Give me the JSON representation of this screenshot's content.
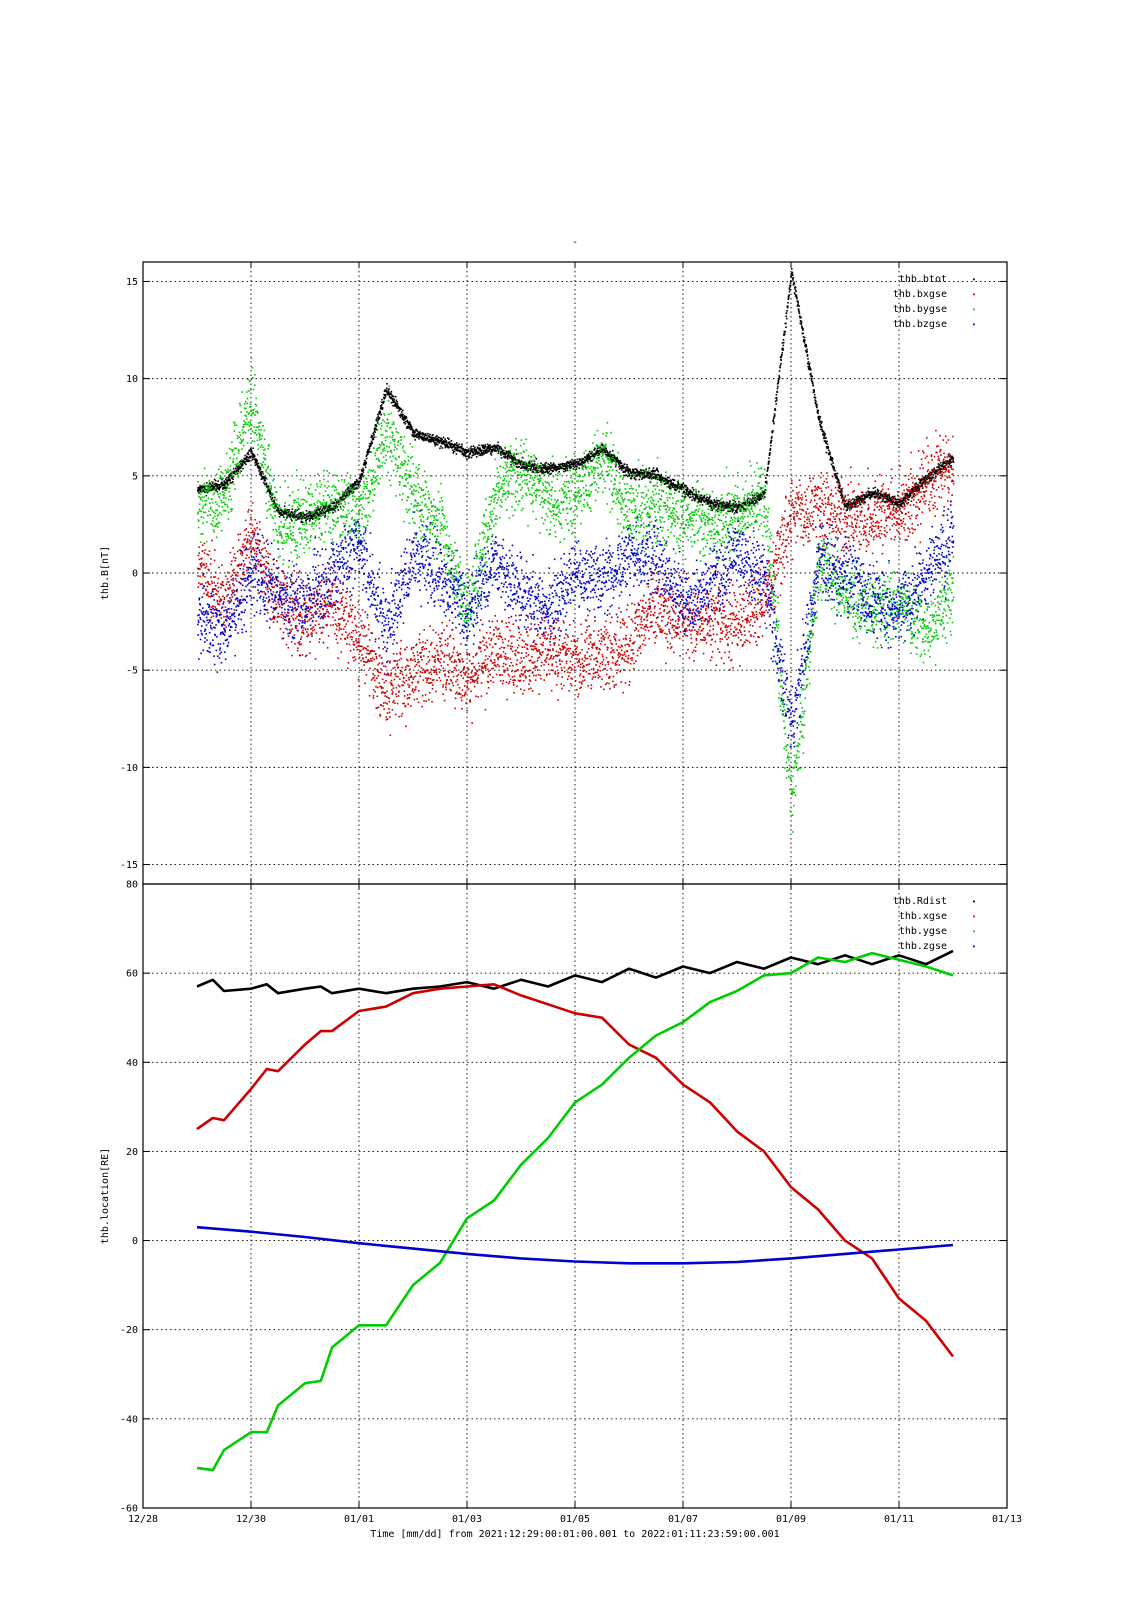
{
  "top_title": "-",
  "xlabel": "Time [mm/dd]  from 2021:12:29:00:01:00.001  to  2022:01:11:23:59:00.001",
  "chart_data": [
    {
      "type": "scatter",
      "panel": "top",
      "title": "",
      "ylabel": "thb.B[nT]",
      "xlabel": "Time [mm/dd]  from 2021:12:29:00:01:00.001  to  2022:01:11:23:59:00.001",
      "xlim": [
        "2021-12-28",
        "2022-01-13"
      ],
      "ylim": [
        -16,
        16
      ],
      "yticks": [
        15,
        10,
        5,
        0,
        -5,
        -10,
        -15
      ],
      "xticks": [
        "12/28",
        "12/30",
        "01/01",
        "01/03",
        "01/05",
        "01/07",
        "01/09",
        "01/11",
        "01/13"
      ],
      "grid": true,
      "legend_position": "top-right",
      "series": [
        {
          "name": "thb.btot",
          "color": "#000000",
          "x": [
            "2021-12-29 00:00",
            "2021-12-29 12:00",
            "2021-12-30 00:00",
            "2021-12-30 12:00",
            "2021-12-31 00:00",
            "2021-12-31 12:00",
            "2022-01-01 00:00",
            "2022-01-01 12:00",
            "2022-01-02 00:00",
            "2022-01-02 12:00",
            "2022-01-03 00:00",
            "2022-01-03 12:00",
            "2022-01-04 00:00",
            "2022-01-04 12:00",
            "2022-01-05 00:00",
            "2022-01-05 12:00",
            "2022-01-06 00:00",
            "2022-01-06 12:00",
            "2022-01-07 00:00",
            "2022-01-07 12:00",
            "2022-01-08 00:00",
            "2022-01-08 12:00",
            "2022-01-09 00:00",
            "2022-01-09 12:00",
            "2022-01-10 00:00",
            "2022-01-10 12:00",
            "2022-01-11 00:00",
            "2022-01-11 12:00",
            "2022-01-12 00:00"
          ],
          "y": [
            4.3,
            4.6,
            6.2,
            3.2,
            2.9,
            3.4,
            4.8,
            9.5,
            7.2,
            6.8,
            6.2,
            6.5,
            5.6,
            5.4,
            5.6,
            6.4,
            5.2,
            5.1,
            4.3,
            3.6,
            3.4,
            4.1,
            15.5,
            8.0,
            3.4,
            4.2,
            3.6,
            4.9,
            6.0
          ]
        },
        {
          "name": "thb.bxgse",
          "color": "#cc0000",
          "x": [
            "2021-12-29 00:00",
            "2021-12-29 12:00",
            "2021-12-30 00:00",
            "2021-12-30 12:00",
            "2021-12-31 00:00",
            "2021-12-31 12:00",
            "2022-01-01 00:00",
            "2022-01-01 12:00",
            "2022-01-02 00:00",
            "2022-01-02 12:00",
            "2022-01-03 00:00",
            "2022-01-03 12:00",
            "2022-01-04 00:00",
            "2022-01-04 12:00",
            "2022-01-05 00:00",
            "2022-01-05 12:00",
            "2022-01-06 00:00",
            "2022-01-06 12:00",
            "2022-01-07 00:00",
            "2022-01-07 12:00",
            "2022-01-08 00:00",
            "2022-01-08 12:00",
            "2022-01-09 00:00",
            "2022-01-09 12:00",
            "2022-01-10 00:00",
            "2022-01-10 12:00",
            "2022-01-11 00:00",
            "2022-01-11 12:00",
            "2022-01-12 00:00"
          ],
          "y": [
            0.5,
            -1.5,
            2.0,
            -1.5,
            -2.5,
            -1.5,
            -3.5,
            -6.0,
            -5.0,
            -4.5,
            -5.5,
            -4.0,
            -4.5,
            -4.0,
            -4.5,
            -4.0,
            -3.5,
            -1.5,
            -2.5,
            -2.5,
            -2.5,
            -1.5,
            3.0,
            3.5,
            2.8,
            3.0,
            3.2,
            4.5,
            5.5
          ]
        },
        {
          "name": "thb.bygse",
          "color": "#00cc00",
          "x": [
            "2021-12-29 00:00",
            "2021-12-29 12:00",
            "2021-12-30 00:00",
            "2021-12-30 12:00",
            "2021-12-31 00:00",
            "2021-12-31 12:00",
            "2022-01-01 00:00",
            "2022-01-01 12:00",
            "2022-01-02 00:00",
            "2022-01-02 12:00",
            "2022-01-03 00:00",
            "2022-01-03 12:00",
            "2022-01-04 00:00",
            "2022-01-04 12:00",
            "2022-01-05 00:00",
            "2022-01-05 12:00",
            "2022-01-06 00:00",
            "2022-01-06 12:00",
            "2022-01-07 00:00",
            "2022-01-07 12:00",
            "2022-01-08 00:00",
            "2022-01-08 12:00",
            "2022-01-09 00:00",
            "2022-01-09 12:00",
            "2022-01-10 00:00",
            "2022-01-10 12:00",
            "2022-01-11 00:00",
            "2022-01-11 12:00",
            "2022-01-12 00:00"
          ],
          "y": [
            3.5,
            4.0,
            9.0,
            2.0,
            3.0,
            3.5,
            3.0,
            7.5,
            4.0,
            2.5,
            -2.0,
            4.0,
            5.5,
            3.5,
            4.0,
            6.0,
            3.0,
            3.5,
            3.0,
            2.5,
            3.0,
            4.0,
            -12.0,
            0.5,
            -1.0,
            -2.0,
            -1.5,
            -3.0,
            -1.0
          ]
        },
        {
          "name": "thb.bzgse",
          "color": "#0000cc",
          "x": [
            "2021-12-29 00:00",
            "2021-12-29 12:00",
            "2021-12-30 00:00",
            "2021-12-30 12:00",
            "2021-12-31 00:00",
            "2021-12-31 12:00",
            "2022-01-01 00:00",
            "2022-01-01 12:00",
            "2022-01-02 00:00",
            "2022-01-02 12:00",
            "2022-01-03 00:00",
            "2022-01-03 12:00",
            "2022-01-04 00:00",
            "2022-01-04 12:00",
            "2022-01-05 00:00",
            "2022-01-05 12:00",
            "2022-01-06 00:00",
            "2022-01-06 12:00",
            "2022-01-07 00:00",
            "2022-01-07 12:00",
            "2022-01-08 00:00",
            "2022-01-08 12:00",
            "2022-01-09 00:00",
            "2022-01-09 12:00",
            "2022-01-10 00:00",
            "2022-01-10 12:00",
            "2022-01-11 00:00",
            "2022-01-11 12:00",
            "2022-01-12 00:00"
          ],
          "y": [
            -2.0,
            -3.0,
            0.0,
            -1.0,
            -1.5,
            0.0,
            1.5,
            -3.0,
            1.0,
            0.0,
            -2.0,
            0.5,
            -1.0,
            -2.0,
            0.0,
            -0.5,
            1.0,
            0.5,
            -1.5,
            -0.5,
            1.0,
            0.0,
            -8.0,
            0.5,
            0.0,
            -1.5,
            -2.0,
            0.0,
            2.0
          ]
        }
      ]
    },
    {
      "type": "line",
      "panel": "bottom",
      "title": "",
      "ylabel": "thb.location[RE]",
      "xlabel": "Time [mm/dd]  from 2021:12:29:00:01:00.001  to  2022:01:11:23:59:00.001",
      "xlim": [
        "2021-12-28",
        "2022-01-13"
      ],
      "ylim": [
        -60,
        80
      ],
      "yticks": [
        80,
        60,
        40,
        20,
        0,
        -20,
        -40,
        -60
      ],
      "xticks": [
        "12/28",
        "12/30",
        "01/01",
        "01/03",
        "01/05",
        "01/07",
        "01/09",
        "01/11",
        "01/13"
      ],
      "grid": true,
      "legend_position": "top-right",
      "series": [
        {
          "name": "thb.Rdist",
          "color": "#000000",
          "x": [
            "2021-12-29 00:00",
            "2021-12-29 07:00",
            "2021-12-29 12:00",
            "2021-12-30 00:00",
            "2021-12-30 07:00",
            "2021-12-30 12:00",
            "2021-12-31 00:00",
            "2021-12-31 07:00",
            "2021-12-31 12:00",
            "2022-01-01 00:00",
            "2022-01-01 12:00",
            "2022-01-02 00:00",
            "2022-01-02 12:00",
            "2022-01-03 00:00",
            "2022-01-03 12:00",
            "2022-01-04 00:00",
            "2022-01-04 12:00",
            "2022-01-05 00:00",
            "2022-01-05 12:00",
            "2022-01-06 00:00",
            "2022-01-06 12:00",
            "2022-01-07 00:00",
            "2022-01-07 12:00",
            "2022-01-08 00:00",
            "2022-01-08 12:00",
            "2022-01-09 00:00",
            "2022-01-09 12:00",
            "2022-01-10 00:00",
            "2022-01-10 12:00",
            "2022-01-11 00:00",
            "2022-01-11 12:00",
            "2022-01-11 23:59"
          ],
          "y": [
            57,
            58.5,
            56,
            56.5,
            57.5,
            55.5,
            56.5,
            57,
            55.5,
            56.5,
            55.5,
            56.5,
            57,
            58,
            56.5,
            58.5,
            57,
            59.5,
            58,
            61,
            59,
            61.5,
            60,
            62.5,
            61,
            63.5,
            62,
            64,
            62,
            64,
            62,
            65
          ]
        },
        {
          "name": "thb.xgse",
          "color": "#cc0000",
          "x": [
            "2021-12-29 00:00",
            "2021-12-29 07:00",
            "2021-12-29 12:00",
            "2021-12-30 00:00",
            "2021-12-30 07:00",
            "2021-12-30 12:00",
            "2021-12-31 00:00",
            "2021-12-31 07:00",
            "2021-12-31 12:00",
            "2022-01-01 00:00",
            "2022-01-01 12:00",
            "2022-01-02 00:00",
            "2022-01-02 12:00",
            "2022-01-03 00:00",
            "2022-01-03 12:00",
            "2022-01-04 00:00",
            "2022-01-04 12:00",
            "2022-01-05 00:00",
            "2022-01-05 12:00",
            "2022-01-06 00:00",
            "2022-01-06 12:00",
            "2022-01-07 00:00",
            "2022-01-07 12:00",
            "2022-01-08 00:00",
            "2022-01-08 12:00",
            "2022-01-09 00:00",
            "2022-01-09 12:00",
            "2022-01-10 00:00",
            "2022-01-10 12:00",
            "2022-01-11 00:00",
            "2022-01-11 12:00",
            "2022-01-11 23:59"
          ],
          "y": [
            25,
            27.5,
            27,
            34,
            38.5,
            38,
            44,
            47,
            47,
            51.5,
            52.5,
            55.5,
            56.5,
            57,
            57.5,
            55,
            53,
            51,
            50,
            44,
            41,
            35,
            31,
            24.5,
            20,
            12,
            7,
            0,
            -4,
            -13,
            -18,
            -26
          ]
        },
        {
          "name": "thb.ygse",
          "color": "#00cc00",
          "x": [
            "2021-12-29 00:00",
            "2021-12-29 07:00",
            "2021-12-29 12:00",
            "2021-12-30 00:00",
            "2021-12-30 07:00",
            "2021-12-30 12:00",
            "2021-12-31 00:00",
            "2021-12-31 07:00",
            "2021-12-31 12:00",
            "2022-01-01 00:00",
            "2022-01-01 12:00",
            "2022-01-02 00:00",
            "2022-01-02 12:00",
            "2022-01-03 00:00",
            "2022-01-03 12:00",
            "2022-01-04 00:00",
            "2022-01-04 12:00",
            "2022-01-05 00:00",
            "2022-01-05 12:00",
            "2022-01-06 00:00",
            "2022-01-06 12:00",
            "2022-01-07 00:00",
            "2022-01-07 12:00",
            "2022-01-08 00:00",
            "2022-01-08 12:00",
            "2022-01-09 00:00",
            "2022-01-09 12:00",
            "2022-01-10 00:00",
            "2022-01-10 12:00",
            "2022-01-11 00:00",
            "2022-01-11 12:00",
            "2022-01-11 23:59"
          ],
          "y": [
            -51,
            -51.5,
            -47,
            -43,
            -43,
            -37,
            -32,
            -31.5,
            -24,
            -19,
            -19,
            -10,
            -5,
            5,
            9,
            17,
            23,
            31,
            35,
            41,
            46,
            49,
            53.5,
            56,
            59.5,
            60,
            63.5,
            62.5,
            64.5,
            63,
            61.5,
            59.5
          ]
        },
        {
          "name": "thb.zgse",
          "color": "#0000cc",
          "x": [
            "2021-12-29 00:00",
            "2021-12-30 00:00",
            "2021-12-31 00:00",
            "2022-01-01 00:00",
            "2022-01-02 00:00",
            "2022-01-03 00:00",
            "2022-01-04 00:00",
            "2022-01-05 00:00",
            "2022-01-06 00:00",
            "2022-01-07 00:00",
            "2022-01-08 00:00",
            "2022-01-09 00:00",
            "2022-01-10 00:00",
            "2022-01-11 00:00",
            "2022-01-11 23:59"
          ],
          "y": [
            3,
            2,
            0.8,
            -0.6,
            -1.8,
            -3,
            -4,
            -4.7,
            -5.1,
            -5.1,
            -4.8,
            -4,
            -3,
            -2,
            -1
          ]
        }
      ]
    }
  ]
}
